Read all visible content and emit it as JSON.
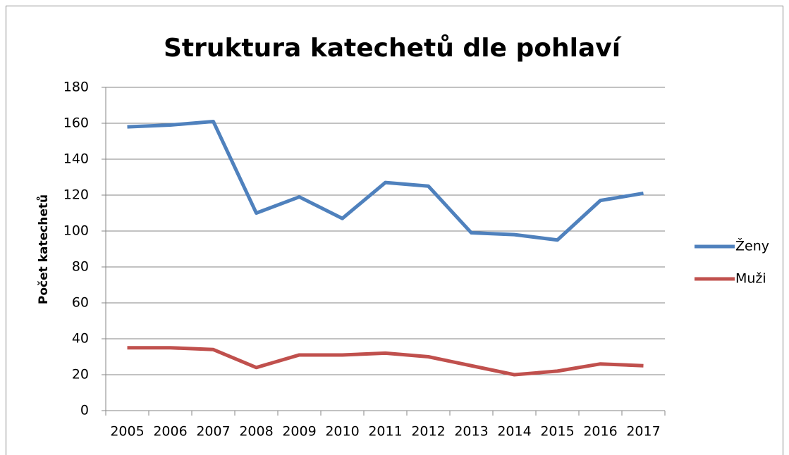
{
  "chart_data": {
    "type": "line",
    "title": "Struktura katechetů dle pohlaví",
    "y_label": "Počet katechetů",
    "categories": [
      "2005",
      "2006",
      "2007",
      "2008",
      "2009",
      "2010",
      "2011",
      "2012",
      "2013",
      "2014",
      "2015",
      "2016",
      "2017"
    ],
    "series": [
      {
        "name": "Ženy",
        "color": "#4f81bd",
        "values": [
          158,
          159,
          161,
          110,
          119,
          107,
          127,
          125,
          99,
          98,
          95,
          117,
          121
        ]
      },
      {
        "name": "Muži",
        "color": "#c0504d",
        "values": [
          35,
          35,
          34,
          24,
          31,
          31,
          32,
          30,
          25,
          20,
          22,
          26,
          25
        ]
      }
    ],
    "ylim": [
      0,
      180
    ],
    "yticks": [
      0,
      20,
      40,
      60,
      80,
      100,
      120,
      140,
      160,
      180
    ],
    "grid": true,
    "legend": "right"
  }
}
